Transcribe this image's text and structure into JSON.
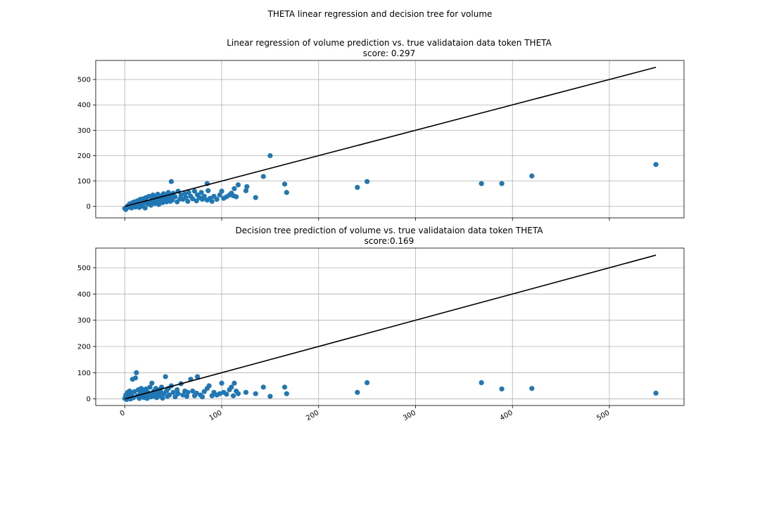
{
  "figure": {
    "suptitle": "THETA linear regression and decision tree for volume"
  },
  "chart_data": [
    {
      "type": "scatter",
      "title": "Linear regression of volume prediction vs. true validataion data token THETA",
      "subtitle": "score: 0.297",
      "xlabel": "",
      "ylabel": "",
      "xlim": [
        -30,
        577
      ],
      "ylim": [
        -45,
        575
      ],
      "xticks": [
        0,
        100,
        200,
        300,
        400,
        500
      ],
      "yticks": [
        0,
        100,
        200,
        300,
        400,
        500
      ],
      "grid": true,
      "marker_color": "#1f77b4",
      "line_color": "#000000",
      "reference_line": {
        "x": [
          0,
          548
        ],
        "y": [
          0,
          548
        ]
      },
      "points": [
        [
          0,
          -8
        ],
        [
          1,
          -12
        ],
        [
          2,
          -5
        ],
        [
          3,
          2
        ],
        [
          4,
          -3
        ],
        [
          5,
          10
        ],
        [
          6,
          4
        ],
        [
          7,
          -6
        ],
        [
          8,
          15
        ],
        [
          9,
          0
        ],
        [
          10,
          18
        ],
        [
          11,
          -2
        ],
        [
          12,
          6
        ],
        [
          13,
          22
        ],
        [
          14,
          12
        ],
        [
          15,
          -4
        ],
        [
          16,
          28
        ],
        [
          17,
          8
        ],
        [
          18,
          2
        ],
        [
          19,
          30
        ],
        [
          20,
          14
        ],
        [
          21,
          -6
        ],
        [
          22,
          35
        ],
        [
          23,
          20
        ],
        [
          24,
          10
        ],
        [
          25,
          40
        ],
        [
          26,
          16
        ],
        [
          27,
          5
        ],
        [
          28,
          32
        ],
        [
          29,
          45
        ],
        [
          30,
          20
        ],
        [
          31,
          12
        ],
        [
          32,
          38
        ],
        [
          33,
          26
        ],
        [
          34,
          48
        ],
        [
          35,
          8
        ],
        [
          36,
          30
        ],
        [
          37,
          22
        ],
        [
          38,
          42
        ],
        [
          39,
          15
        ],
        [
          40,
          50
        ],
        [
          41,
          28
        ],
        [
          42,
          35
        ],
        [
          43,
          18
        ],
        [
          44,
          44
        ],
        [
          45,
          55
        ],
        [
          46,
          30
        ],
        [
          47,
          20
        ],
        [
          48,
          40
        ],
        [
          49,
          25
        ],
        [
          50,
          52
        ],
        [
          52,
          38
        ],
        [
          54,
          18
        ],
        [
          55,
          60
        ],
        [
          57,
          30
        ],
        [
          58,
          45
        ],
        [
          60,
          28
        ],
        [
          62,
          50
        ],
        [
          63,
          35
        ],
        [
          65,
          20
        ],
        [
          66,
          55
        ],
        [
          68,
          40
        ],
        [
          70,
          30
        ],
        [
          72,
          60
        ],
        [
          74,
          22
        ],
        [
          75,
          45
        ],
        [
          77,
          35
        ],
        [
          79,
          55
        ],
        [
          80,
          28
        ],
        [
          82,
          40
        ],
        [
          85,
          25
        ],
        [
          86,
          62
        ],
        [
          88,
          32
        ],
        [
          90,
          20
        ],
        [
          92,
          40
        ],
        [
          95,
          28
        ],
        [
          98,
          45
        ],
        [
          100,
          60
        ],
        [
          102,
          32
        ],
        [
          105,
          38
        ],
        [
          108,
          45
        ],
        [
          110,
          52
        ],
        [
          112,
          42
        ],
        [
          113,
          70
        ],
        [
          115,
          38
        ],
        [
          117,
          85
        ],
        [
          125,
          62
        ],
        [
          126,
          78
        ],
        [
          135,
          35
        ],
        [
          143,
          118
        ],
        [
          150,
          200
        ],
        [
          165,
          88
        ],
        [
          167,
          55
        ],
        [
          48,
          98
        ],
        [
          85,
          90
        ],
        [
          240,
          75
        ],
        [
          250,
          98
        ],
        [
          368,
          90
        ],
        [
          389,
          90
        ],
        [
          420,
          120
        ],
        [
          548,
          165
        ]
      ]
    },
    {
      "type": "scatter",
      "title": "Decision tree prediction of volume vs. true validataion data token THETA",
      "subtitle": "score:0.169",
      "xlabel": "",
      "ylabel": "",
      "xlim": [
        -30,
        577
      ],
      "ylim": [
        -25,
        575
      ],
      "xticks": [
        0,
        100,
        200,
        300,
        400,
        500
      ],
      "xticklabels": [
        "0",
        "100",
        "200",
        "300",
        "400",
        "500"
      ],
      "yticks": [
        0,
        100,
        200,
        300,
        400,
        500
      ],
      "grid": true,
      "marker_color": "#1f77b4",
      "line_color": "#000000",
      "reference_line": {
        "x": [
          0,
          548
        ],
        "y": [
          0,
          548
        ]
      },
      "points": [
        [
          0,
          2
        ],
        [
          1,
          15
        ],
        [
          2,
          -2
        ],
        [
          3,
          25
        ],
        [
          4,
          8
        ],
        [
          5,
          30
        ],
        [
          6,
          0
        ],
        [
          7,
          18
        ],
        [
          8,
          75
        ],
        [
          9,
          5
        ],
        [
          10,
          28
        ],
        [
          11,
          80
        ],
        [
          12,
          100
        ],
        [
          13,
          12
        ],
        [
          14,
          35
        ],
        [
          15,
          2
        ],
        [
          16,
          22
        ],
        [
          17,
          40
        ],
        [
          18,
          10
        ],
        [
          19,
          30
        ],
        [
          20,
          5
        ],
        [
          21,
          18
        ],
        [
          22,
          38
        ],
        [
          23,
          2
        ],
        [
          24,
          25
        ],
        [
          25,
          15
        ],
        [
          26,
          45
        ],
        [
          27,
          8
        ],
        [
          28,
          60
        ],
        [
          29,
          20
        ],
        [
          30,
          30
        ],
        [
          31,
          10
        ],
        [
          32,
          40
        ],
        [
          33,
          5
        ],
        [
          34,
          22
        ],
        [
          35,
          35
        ],
        [
          36,
          12
        ],
        [
          37,
          28
        ],
        [
          38,
          45
        ],
        [
          39,
          3
        ],
        [
          40,
          20
        ],
        [
          42,
          85
        ],
        [
          43,
          30
        ],
        [
          44,
          10
        ],
        [
          45,
          40
        ],
        [
          46,
          15
        ],
        [
          48,
          50
        ],
        [
          50,
          25
        ],
        [
          52,
          8
        ],
        [
          54,
          35
        ],
        [
          55,
          20
        ],
        [
          58,
          58
        ],
        [
          60,
          15
        ],
        [
          62,
          30
        ],
        [
          64,
          10
        ],
        [
          65,
          25
        ],
        [
          68,
          75
        ],
        [
          70,
          30
        ],
        [
          72,
          12
        ],
        [
          74,
          22
        ],
        [
          75,
          85
        ],
        [
          78,
          15
        ],
        [
          80,
          8
        ],
        [
          82,
          28
        ],
        [
          85,
          40
        ],
        [
          87,
          50
        ],
        [
          90,
          12
        ],
        [
          92,
          25
        ],
        [
          95,
          15
        ],
        [
          98,
          20
        ],
        [
          100,
          60
        ],
        [
          102,
          25
        ],
        [
          105,
          18
        ],
        [
          108,
          35
        ],
        [
          110,
          45
        ],
        [
          112,
          12
        ],
        [
          113,
          60
        ],
        [
          115,
          30
        ],
        [
          117,
          20
        ],
        [
          125,
          25
        ],
        [
          135,
          20
        ],
        [
          143,
          45
        ],
        [
          150,
          10
        ],
        [
          165,
          45
        ],
        [
          167,
          20
        ],
        [
          240,
          25
        ],
        [
          250,
          62
        ],
        [
          368,
          62
        ],
        [
          389,
          38
        ],
        [
          420,
          40
        ],
        [
          548,
          22
        ]
      ]
    }
  ]
}
